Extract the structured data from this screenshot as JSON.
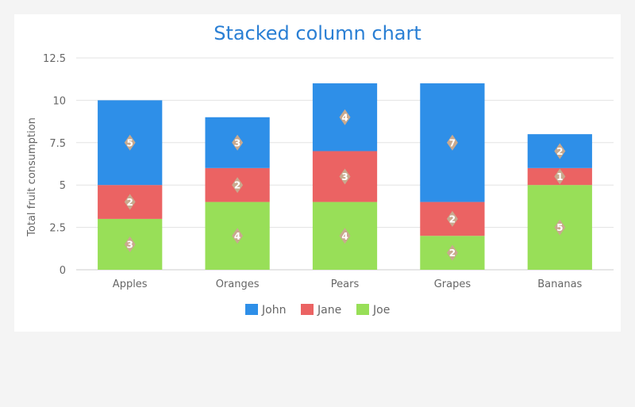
{
  "chart_data": {
    "type": "bar",
    "stacked": true,
    "title": "Stacked column chart",
    "xlabel": "",
    "ylabel": "Total fruit consumption",
    "categories": [
      "Apples",
      "Oranges",
      "Pears",
      "Grapes",
      "Bananas"
    ],
    "series": [
      {
        "name": "John",
        "values": [
          5,
          3,
          4,
          7,
          2
        ],
        "color": "#2e8fe8"
      },
      {
        "name": "Jane",
        "values": [
          2,
          2,
          3,
          2,
          1
        ],
        "color": "#eb6363"
      },
      {
        "name": "Joe",
        "values": [
          3,
          4,
          4,
          2,
          5
        ],
        "color": "#98df58"
      }
    ],
    "stack_order_bottom_to_top": [
      "Joe",
      "Jane",
      "John"
    ],
    "ylim": [
      0,
      12.5
    ],
    "yticks": [
      "0",
      "2.5",
      "5",
      "7.5",
      "10",
      "12.5"
    ],
    "grid": true,
    "legend": "bottom-center",
    "data_labels": true,
    "data_label_marker_color": "#c9a98e"
  }
}
